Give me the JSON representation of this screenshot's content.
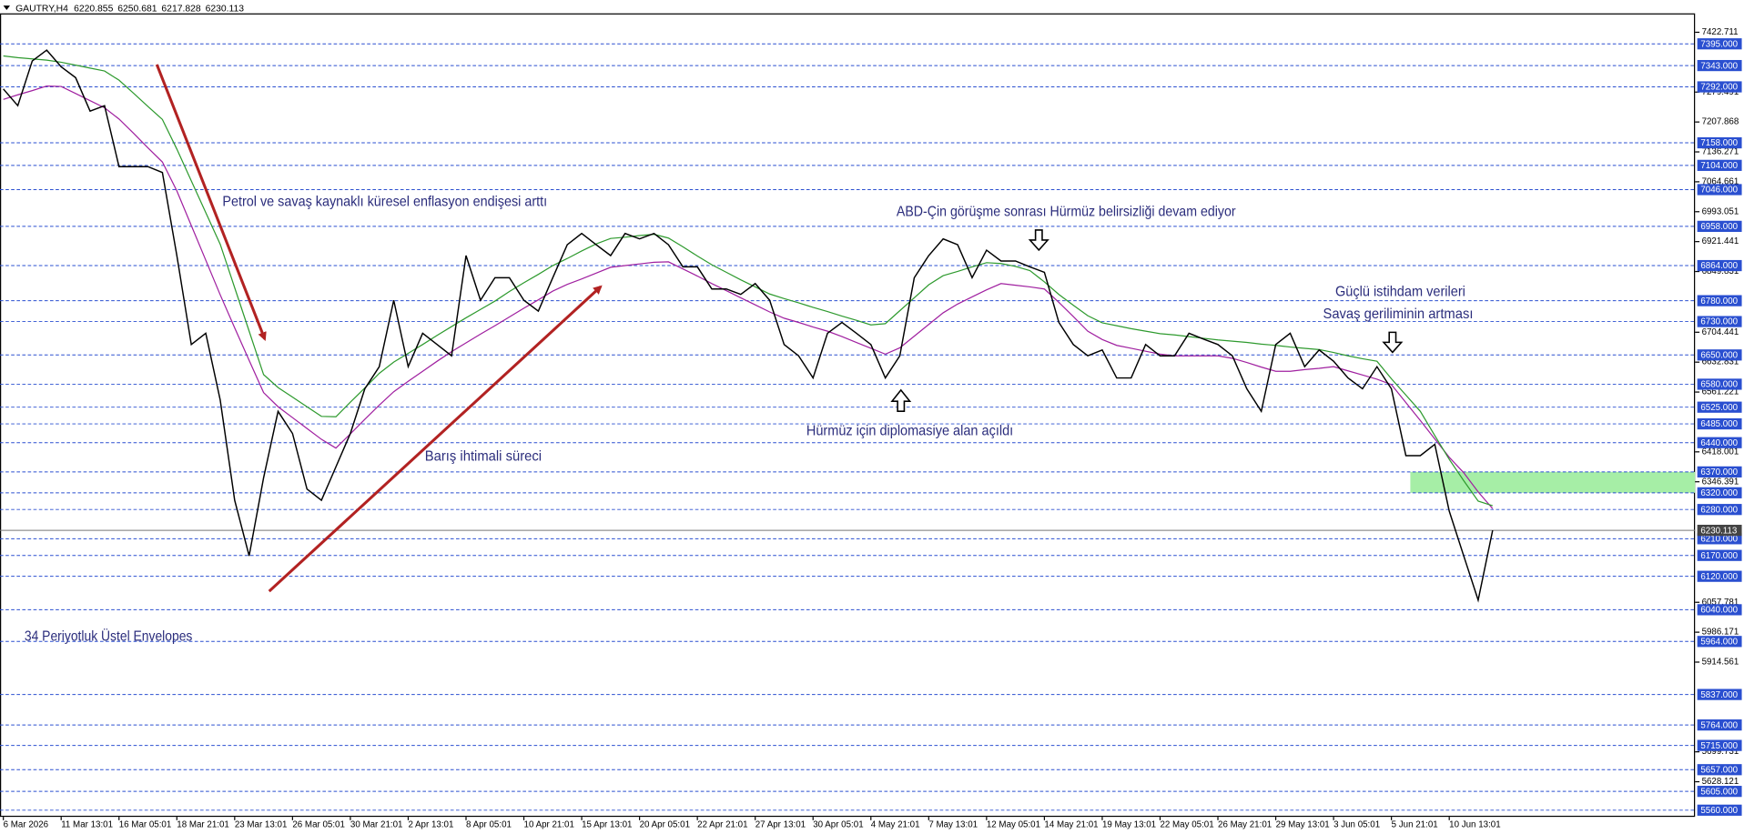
{
  "chart_data": {
    "type": "line",
    "symbol": "GAUTRY,H4",
    "ohlc": [
      6220.855,
      6250.681,
      6217.828,
      6230.113
    ],
    "categories": [
      "6 Mar 2026",
      null,
      null,
      null,
      "11 Mar 13:01",
      null,
      null,
      null,
      "16 Mar 05:01",
      null,
      null,
      null,
      "18 Mar 21:01",
      null,
      null,
      null,
      "23 Mar 13:01",
      null,
      null,
      null,
      "26 Mar 05:01",
      null,
      null,
      null,
      "30 Mar 21:01",
      null,
      null,
      null,
      "2 Apr 13:01",
      null,
      null,
      null,
      "8 Apr 05:01",
      null,
      null,
      null,
      "10 Apr 21:01",
      null,
      null,
      null,
      "15 Apr 13:01",
      null,
      null,
      null,
      "20 Apr 05:01",
      null,
      null,
      null,
      "22 Apr 21:01",
      null,
      null,
      null,
      "27 Apr 13:01",
      null,
      null,
      null,
      "30 Apr 05:01",
      null,
      null,
      null,
      "4 May 21:01",
      null,
      null,
      null,
      "7 May 13:01",
      null,
      null,
      null,
      "12 May 05:01",
      null,
      null,
      null,
      "14 May 21:01",
      null,
      null,
      null,
      "19 May 13:01",
      null,
      null,
      null,
      "22 May 05:01",
      null,
      null,
      null,
      "26 May 21:01",
      null,
      null,
      null,
      "29 May 13:01",
      null,
      null,
      null,
      "3 Jun 05:01",
      null,
      null,
      null,
      "5 Jun 21:01",
      null,
      null,
      null,
      "10 Jun 13:01",
      null,
      null,
      null
    ],
    "series": [
      {
        "color": "#000000",
        "values": [
          7287,
          7247,
          7354,
          7380,
          7340,
          7314,
          7234,
          7247,
          7101,
          7101,
          7101,
          7087,
          6888,
          6675,
          6702,
          6542,
          6302,
          6169,
          6356,
          6515,
          6462,
          6329,
          6302,
          6382,
          6462,
          6569,
          6622,
          6781,
          6622,
          6702,
          6675,
          6648,
          6888,
          6781,
          6835,
          6835,
          6781,
          6755,
          6835,
          6914,
          6941,
          6914,
          6888,
          6941,
          6928,
          6941,
          6914,
          6861,
          6861,
          6808,
          6808,
          6795,
          6821,
          6781,
          6675,
          6648,
          6595,
          6702,
          6728,
          6702,
          6675,
          6595,
          6648,
          6835,
          6888,
          6928,
          6914,
          6835,
          6901,
          6875,
          6875,
          6861,
          6848,
          6728,
          6675,
          6648,
          6662,
          6595,
          6595,
          6675,
          6648,
          6648,
          6702,
          6688,
          6675,
          6648,
          6569,
          6515,
          6675,
          6702,
          6622,
          6662,
          6635,
          6595,
          6569,
          6622,
          6569,
          6409,
          6409,
          6436,
          6276,
          6169,
          6063,
          6230
        ]
      },
      {
        "color": "#2e9a2e",
        "values": [
          7366,
          7362,
          7359,
          7356,
          7351,
          7344,
          7337,
          7330,
          7308,
          7277,
          7245,
          7214,
          7143,
          7067,
          6991,
          6915,
          6811,
          6707,
          6603,
          6572,
          6549,
          6526,
          6503,
          6502,
          6537,
          6571,
          6606,
          6633,
          6654,
          6675,
          6697,
          6718,
          6739,
          6759,
          6779,
          6802,
          6823,
          6843,
          6864,
          6881,
          6899,
          6916,
          6929,
          6932,
          6936,
          6939,
          6930,
          6909,
          6887,
          6866,
          6848,
          6830,
          6813,
          6796,
          6785,
          6775,
          6764,
          6754,
          6743,
          6733,
          6722,
          6725,
          6756,
          6787,
          6818,
          6840,
          6850,
          6861,
          6871,
          6869,
          6862,
          6852,
          6825,
          6795,
          6769,
          6744,
          6727,
          6720,
          6713,
          6707,
          6701,
          6698,
          6694,
          6690,
          6686,
          6683,
          6680,
          6676,
          6673,
          6669,
          6666,
          6663,
          6656,
          6648,
          6641,
          6635,
          6593,
          6554,
          6515,
          6457,
          6400,
          6349,
          6300,
          6289
        ]
      },
      {
        "color": "#a020a0",
        "values": [
          7262,
          7273,
          7283,
          7294,
          7293,
          7276,
          7259,
          7242,
          7215,
          7181,
          7146,
          7112,
          7043,
          6960,
          6877,
          6794,
          6715,
          6637,
          6560,
          6526,
          6500,
          6474,
          6448,
          6427,
          6461,
          6496,
          6530,
          6562,
          6587,
          6611,
          6635,
          6658,
          6679,
          6700,
          6720,
          6741,
          6762,
          6782,
          6803,
          6819,
          6832,
          6846,
          6860,
          6864,
          6868,
          6872,
          6873,
          6856,
          6839,
          6821,
          6804,
          6787,
          6770,
          6753,
          6738,
          6728,
          6717,
          6707,
          6694,
          6680,
          6666,
          6652,
          6667,
          6695,
          6723,
          6751,
          6772,
          6789,
          6806,
          6821,
          6817,
          6813,
          6808,
          6776,
          6742,
          6707,
          6687,
          6673,
          6666,
          6659,
          6652,
          6648,
          6648,
          6648,
          6648,
          6642,
          6632,
          6621,
          6611,
          6611,
          6615,
          6618,
          6622,
          6612,
          6602,
          6592,
          6579,
          6536,
          6493,
          6449,
          6405,
          6368,
          6322,
          6282
        ]
      }
    ],
    "ylim": [
      5544,
      7468
    ],
    "yticks": [
      7422.711,
      7279.491,
      7207.868,
      7136.271,
      7064.661,
      6993.051,
      6921.441,
      6849.831,
      6704.441,
      6632.831,
      6561.221,
      6418.001,
      6346.391,
      6057.781,
      5986.171,
      5914.561,
      5699.731,
      5628.121
    ],
    "levels": [
      {
        "value": 7395,
        "label": "7395.000"
      },
      {
        "value": 7343,
        "label": "7343.000"
      },
      {
        "value": 7292,
        "label": "7292.000"
      },
      {
        "value": 7158,
        "label": "7158.000"
      },
      {
        "value": 7104,
        "label": "7104.000"
      },
      {
        "value": 7046,
        "label": "7046.000"
      },
      {
        "value": 6958,
        "label": "6958.000"
      },
      {
        "value": 6864,
        "label": "6864.000"
      },
      {
        "value": 6780,
        "label": "6780.000"
      },
      {
        "value": 6730,
        "label": "6730.000"
      },
      {
        "value": 6650,
        "label": "6650.000"
      },
      {
        "value": 6580,
        "label": "6580.000"
      },
      {
        "value": 6525,
        "label": "6525.000"
      },
      {
        "value": 6485,
        "label": "6485.000"
      },
      {
        "value": 6440,
        "label": "6440.000"
      },
      {
        "value": 6370,
        "label": "6370.000"
      },
      {
        "value": 6320,
        "label": "6320.000"
      },
      {
        "value": 6280,
        "label": "6280.000"
      },
      {
        "value": 6210,
        "label": "6210.000"
      },
      {
        "value": 6170,
        "label": "6170.000"
      },
      {
        "value": 6120,
        "label": "6120.000"
      },
      {
        "value": 6040,
        "label": "6040.000"
      },
      {
        "value": 5964,
        "label": "5964.000"
      },
      {
        "value": 5837,
        "label": "5837.000"
      },
      {
        "value": 5764,
        "label": "5764.000"
      },
      {
        "value": 5715,
        "label": "5715.000"
      },
      {
        "value": 5657,
        "label": "5657.000"
      },
      {
        "value": 5605,
        "label": "5605.000"
      },
      {
        "value": 5560,
        "label": "5560.000"
      }
    ],
    "level_color": "#2a4fd0",
    "last_price": 6230.113,
    "zone": {
      "from": 6320,
      "to": 6370,
      "color": "#a6eea6"
    },
    "annotations": [
      "Petrol ve savaş kaynaklı küresel enflasyon endişesi arttı",
      "ABD-Çin görüşme sonrası Hürmüz belirsizliği devam ediyor",
      "Güçlü istihdam verileri",
      "Savaş geriliminin artması",
      "Hürmüz için diplomasiye alan açıldı",
      "Barış ihtimali süreci",
      "34 Periyotluk Üstel Envelopes"
    ]
  }
}
